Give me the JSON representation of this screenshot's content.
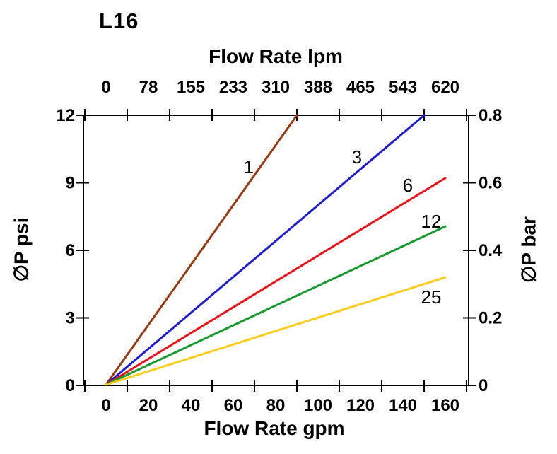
{
  "title": "L16",
  "axes": {
    "top": {
      "label": "Flow Rate lpm",
      "tick_labels": [
        "0",
        "78",
        "155",
        "233",
        "310",
        "388",
        "465",
        "543",
        "620"
      ]
    },
    "bottom": {
      "label": "Flow Rate gpm",
      "tick_labels": [
        "0",
        "20",
        "40",
        "60",
        "80",
        "100",
        "120",
        "140",
        "160"
      ]
    },
    "left": {
      "label": "∅P psi",
      "tick_labels": [
        "0",
        "3",
        "6",
        "9",
        "12"
      ]
    },
    "right": {
      "label": "∅P bar",
      "tick_labels": [
        "0",
        "0.2",
        "0.4",
        "0.6",
        "0.8"
      ]
    }
  },
  "chart_data": {
    "type": "line",
    "title": "L16",
    "xlabel_bottom": "Flow Rate gpm",
    "xlabel_top": "Flow Rate lpm",
    "ylabel_left": "∅P psi",
    "ylabel_right": "∅P bar",
    "xlim_gpm": [
      0,
      170
    ],
    "ylim_psi": [
      0,
      12
    ],
    "x_ticks_gpm": [
      0,
      20,
      40,
      60,
      80,
      100,
      120,
      140,
      160
    ],
    "x_ticks_lpm": [
      0,
      78,
      155,
      233,
      310,
      388,
      465,
      543,
      620
    ],
    "y_ticks_psi": [
      0,
      3,
      6,
      9,
      12
    ],
    "y_ticks_bar": [
      0,
      0.2,
      0.4,
      0.6,
      0.8
    ],
    "grid": false,
    "legend": "inline-labels",
    "series": [
      {
        "name": "1",
        "color": "#9b3a10",
        "points_gpm_psi": [
          [
            0,
            0
          ],
          [
            90,
            12
          ]
        ],
        "label_at_gpm_psi": [
          67.3,
          9.7
        ]
      },
      {
        "name": "3",
        "color": "#1c1cd0",
        "points_gpm_psi": [
          [
            0,
            0
          ],
          [
            150,
            12
          ]
        ],
        "label_at_gpm_psi": [
          118.3,
          10.14
        ]
      },
      {
        "name": "6",
        "color": "#ea1217",
        "points_gpm_psi": [
          [
            0,
            0
          ],
          [
            160,
            9.2
          ]
        ],
        "label_at_gpm_psi": [
          142.3,
          8.88
        ]
      },
      {
        "name": "12",
        "color": "#159b2e",
        "points_gpm_psi": [
          [
            0,
            0
          ],
          [
            160,
            7.05
          ]
        ],
        "label_at_gmp_psi_note": "",
        "label_at_gpm_psi": [
          153.3,
          7.27
        ]
      },
      {
        "name": "25",
        "color": "#ffcc1c",
        "points_gpm_psi": [
          [
            0,
            0
          ],
          [
            160,
            4.78
          ]
        ],
        "label_at_gpm_psi": [
          153.3,
          3.9
        ]
      }
    ]
  }
}
